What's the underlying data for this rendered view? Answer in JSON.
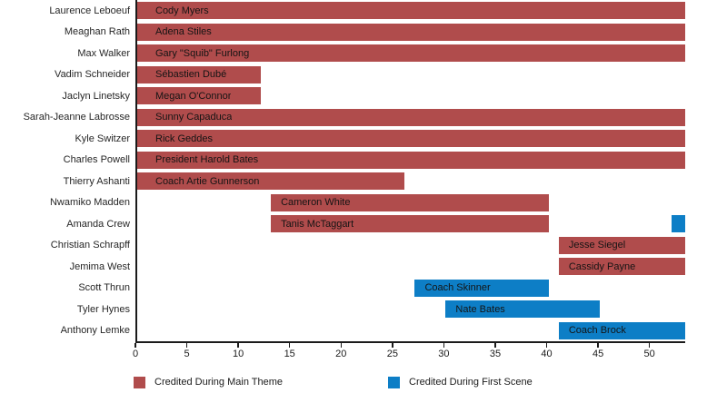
{
  "chart_data": {
    "type": "bar",
    "subtype": "range-timeline",
    "title": "",
    "xlabel": "",
    "ylabel": "",
    "grid": false,
    "xlim": [
      0,
      53.3
    ],
    "x_ticks": [
      0,
      5,
      10,
      15,
      20,
      25,
      30,
      35,
      40,
      45,
      50
    ],
    "colors": {
      "main_theme": "#b04c4c",
      "first_scene": "#0d7ec6"
    },
    "legend_position": "bottom",
    "legend": [
      {
        "label": "Credited During Main Theme",
        "type": "main_theme"
      },
      {
        "label": "Credited During First Scene",
        "type": "first_scene"
      }
    ],
    "rows": [
      {
        "actor": "Laurence Leboeuf",
        "bars": [
          {
            "character": "Cody Myers",
            "start": 0,
            "end": 53.3,
            "type": "main_theme"
          }
        ]
      },
      {
        "actor": "Meaghan Rath",
        "bars": [
          {
            "character": "Adena Stiles",
            "start": 0,
            "end": 53.3,
            "type": "main_theme"
          }
        ]
      },
      {
        "actor": "Max Walker",
        "bars": [
          {
            "character": "Gary \"Squib\" Furlong",
            "start": 0,
            "end": 53.3,
            "type": "main_theme"
          }
        ]
      },
      {
        "actor": "Vadim Schneider",
        "bars": [
          {
            "character": "Sébastien Dubé",
            "start": 0,
            "end": 12,
            "type": "main_theme"
          }
        ]
      },
      {
        "actor": "Jaclyn Linetsky",
        "bars": [
          {
            "character": "Megan O'Connor",
            "start": 0,
            "end": 12,
            "type": "main_theme"
          }
        ]
      },
      {
        "actor": "Sarah-Jeanne Labrosse",
        "bars": [
          {
            "character": "Sunny Capaduca",
            "start": 0,
            "end": 53.3,
            "type": "main_theme"
          }
        ]
      },
      {
        "actor": "Kyle Switzer",
        "bars": [
          {
            "character": "Rick Geddes",
            "start": 0,
            "end": 53.3,
            "type": "main_theme"
          }
        ]
      },
      {
        "actor": "Charles Powell",
        "bars": [
          {
            "character": "President Harold Bates",
            "start": 0,
            "end": 53.3,
            "type": "main_theme"
          }
        ]
      },
      {
        "actor": "Thierry Ashanti",
        "bars": [
          {
            "character": "Coach Artie Gunnerson",
            "start": 0,
            "end": 26,
            "type": "main_theme"
          }
        ]
      },
      {
        "actor": "Nwamiko Madden",
        "bars": [
          {
            "character": "Cameron White",
            "start": 13,
            "end": 40,
            "type": "main_theme"
          }
        ]
      },
      {
        "actor": "Amanda Crew",
        "bars": [
          {
            "character": "Tanis McTaggart",
            "start": 13,
            "end": 40,
            "type": "main_theme"
          },
          {
            "character": "",
            "start": 52,
            "end": 53.3,
            "type": "first_scene"
          }
        ]
      },
      {
        "actor": "Christian Schrapff",
        "bars": [
          {
            "character": "Jesse Siegel",
            "start": 41,
            "end": 53.3,
            "type": "main_theme"
          }
        ]
      },
      {
        "actor": "Jemima West",
        "bars": [
          {
            "character": "Cassidy Payne",
            "start": 41,
            "end": 53.3,
            "type": "main_theme"
          }
        ]
      },
      {
        "actor": "Scott Thrun",
        "bars": [
          {
            "character": "Coach Skinner",
            "start": 27,
            "end": 40,
            "type": "first_scene"
          }
        ]
      },
      {
        "actor": "Tyler Hynes",
        "bars": [
          {
            "character": "Nate Bates",
            "start": 30,
            "end": 45,
            "type": "first_scene"
          }
        ]
      },
      {
        "actor": "Anthony Lemke",
        "bars": [
          {
            "character": "Coach Brock",
            "start": 41,
            "end": 53.3,
            "type": "first_scene"
          }
        ]
      }
    ]
  }
}
